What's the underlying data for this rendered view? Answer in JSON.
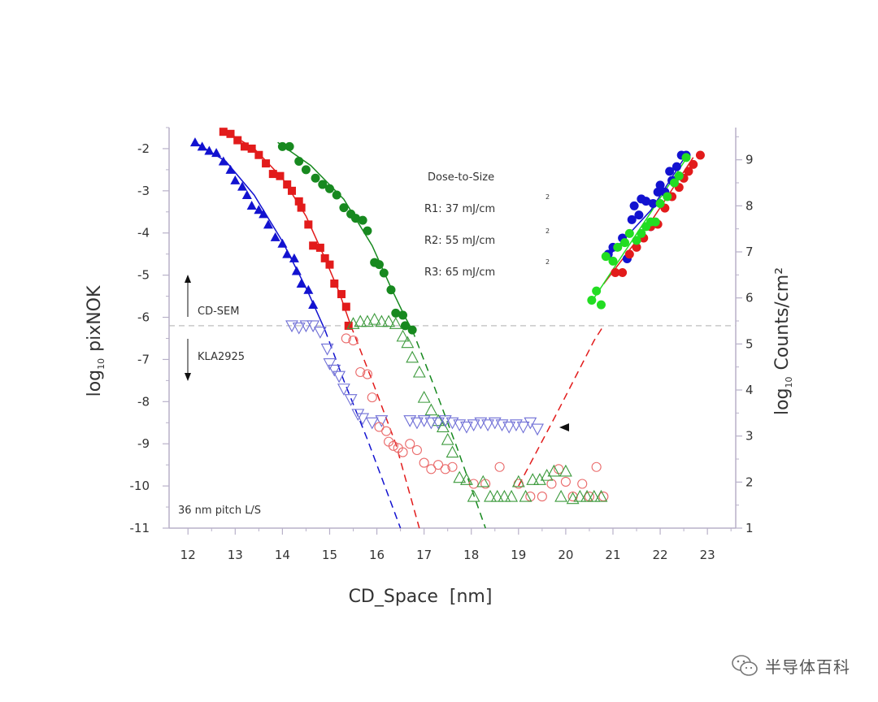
{
  "chart_data": {
    "type": "scatter",
    "xlabel": "CD_Space  [nm]",
    "ylabel_left": {
      "prefix": "log",
      "sub": "10",
      "name": "pixNOK"
    },
    "ylabel_right": {
      "prefix": "log",
      "sub": "10",
      "name": "Counts/cm²"
    },
    "xlim": [
      11.6,
      23.6
    ],
    "ylim_left": [
      -11,
      -1.5
    ],
    "ylim_right": [
      1,
      9.7
    ],
    "x_ticks": [
      12,
      13,
      14,
      15,
      16,
      17,
      18,
      19,
      20,
      21,
      22,
      23
    ],
    "y_ticks_left": [
      -2,
      -3,
      -4,
      -5,
      -6,
      -7,
      -8,
      -9,
      -10,
      -11
    ],
    "y_ticks_right": [
      1,
      2,
      3,
      4,
      5,
      6,
      7,
      8,
      9
    ],
    "threshold_level": -6.2,
    "annotations": {
      "dose_title": "Dose-to-Size",
      "r1": "R1: 37 mJ/cm",
      "r2": "R2: 55 mJ/cm",
      "r3": "R3: 65 mJ/cm",
      "sup": "2",
      "cd_sem": "CD-SEM",
      "kla": "KLA2925",
      "pitch": "36 nm pitch L/S"
    },
    "colors": {
      "R1": "#1212d0",
      "R2": "#e21b1b",
      "R3": "#17891f",
      "R3_right": "#22dd22",
      "kla_R1": "#6f6fd6",
      "kla_R2": "#ea6a6a",
      "kla_R3": "#3c9a3c"
    },
    "series": [
      {
        "id": "R1_cdsem",
        "marker": "triangle-up-filled",
        "color": "#1212d0",
        "points": [
          [
            12.15,
            -1.85
          ],
          [
            12.3,
            -1.95
          ],
          [
            12.45,
            -2.05
          ],
          [
            12.6,
            -2.1
          ],
          [
            12.75,
            -2.3
          ],
          [
            12.9,
            -2.5
          ],
          [
            13.0,
            -2.75
          ],
          [
            13.15,
            -2.9
          ],
          [
            13.25,
            -3.1
          ],
          [
            13.35,
            -3.35
          ],
          [
            13.5,
            -3.45
          ],
          [
            13.6,
            -3.55
          ],
          [
            13.7,
            -3.8
          ],
          [
            13.85,
            -4.1
          ],
          [
            14.0,
            -4.25
          ],
          [
            14.1,
            -4.5
          ],
          [
            14.25,
            -4.6
          ],
          [
            14.3,
            -4.9
          ],
          [
            14.4,
            -5.2
          ],
          [
            14.55,
            -5.35
          ],
          [
            14.65,
            -5.7
          ]
        ]
      },
      {
        "id": "R2_cdsem",
        "marker": "square-filled",
        "color": "#e21b1b",
        "points": [
          [
            12.75,
            -1.6
          ],
          [
            12.9,
            -1.65
          ],
          [
            13.05,
            -1.8
          ],
          [
            13.2,
            -1.95
          ],
          [
            13.35,
            -2.0
          ],
          [
            13.5,
            -2.15
          ],
          [
            13.65,
            -2.35
          ],
          [
            13.8,
            -2.6
          ],
          [
            13.95,
            -2.65
          ],
          [
            14.1,
            -2.85
          ],
          [
            14.2,
            -3.0
          ],
          [
            14.35,
            -3.25
          ],
          [
            14.4,
            -3.4
          ],
          [
            14.55,
            -3.8
          ],
          [
            14.65,
            -4.3
          ],
          [
            14.8,
            -4.35
          ],
          [
            14.9,
            -4.6
          ],
          [
            15.0,
            -4.75
          ],
          [
            15.1,
            -5.2
          ],
          [
            15.25,
            -5.45
          ],
          [
            15.35,
            -5.75
          ],
          [
            15.4,
            -6.2
          ]
        ]
      },
      {
        "id": "R3_cdsem",
        "marker": "circle-filled",
        "color": "#17891f",
        "points": [
          [
            14.0,
            -1.95
          ],
          [
            14.15,
            -1.95
          ],
          [
            14.35,
            -2.3
          ],
          [
            14.5,
            -2.5
          ],
          [
            14.7,
            -2.7
          ],
          [
            14.85,
            -2.85
          ],
          [
            15.0,
            -2.95
          ],
          [
            15.15,
            -3.1
          ],
          [
            15.3,
            -3.4
          ],
          [
            15.45,
            -3.55
          ],
          [
            15.55,
            -3.65
          ],
          [
            15.7,
            -3.7
          ],
          [
            15.8,
            -3.95
          ],
          [
            15.95,
            -4.7
          ],
          [
            16.05,
            -4.75
          ],
          [
            16.15,
            -4.95
          ],
          [
            16.3,
            -5.35
          ],
          [
            16.4,
            -5.9
          ],
          [
            16.55,
            -5.95
          ],
          [
            16.6,
            -6.2
          ],
          [
            16.75,
            -6.3
          ]
        ]
      },
      {
        "id": "R1_kla",
        "marker": "triangle-down-open",
        "color": "#6f6fd6",
        "points": [
          [
            14.2,
            -6.2
          ],
          [
            14.35,
            -6.25
          ],
          [
            14.5,
            -6.2
          ],
          [
            14.65,
            -6.2
          ],
          [
            14.8,
            -6.35
          ],
          [
            14.95,
            -6.75
          ],
          [
            15.0,
            -7.1
          ],
          [
            15.1,
            -7.25
          ],
          [
            15.2,
            -7.4
          ],
          [
            15.3,
            -7.7
          ],
          [
            15.45,
            -7.95
          ],
          [
            15.6,
            -8.3
          ],
          [
            15.7,
            -8.4
          ],
          [
            15.9,
            -8.5
          ],
          [
            16.1,
            -8.45
          ]
        ]
      },
      {
        "id": "R2_kla",
        "marker": "circle-open",
        "color": "#ea6a6a",
        "points": [
          [
            15.35,
            -6.5
          ],
          [
            15.5,
            -6.55
          ],
          [
            15.65,
            -7.3
          ],
          [
            15.8,
            -7.35
          ],
          [
            15.9,
            -7.9
          ],
          [
            16.05,
            -8.6
          ],
          [
            16.2,
            -8.7
          ],
          [
            16.25,
            -8.95
          ],
          [
            16.35,
            -9.05
          ],
          [
            16.45,
            -9.1
          ],
          [
            16.55,
            -9.2
          ],
          [
            16.7,
            -9.0
          ],
          [
            16.85,
            -9.15
          ],
          [
            17.0,
            -9.45
          ],
          [
            17.15,
            -9.6
          ],
          [
            17.3,
            -9.5
          ],
          [
            17.45,
            -9.6
          ],
          [
            17.6,
            -9.55
          ],
          [
            18.05,
            -9.95
          ],
          [
            18.3,
            -9.95
          ],
          [
            18.6,
            -9.55
          ],
          [
            19.0,
            -9.95
          ],
          [
            19.25,
            -10.25
          ],
          [
            19.5,
            -10.25
          ],
          [
            19.7,
            -9.95
          ],
          [
            19.85,
            -9.6
          ],
          [
            20.0,
            -9.9
          ],
          [
            20.15,
            -10.25
          ],
          [
            20.35,
            -9.95
          ],
          [
            20.5,
            -10.25
          ],
          [
            20.65,
            -9.55
          ],
          [
            20.8,
            -10.25
          ]
        ]
      },
      {
        "id": "R3_kla",
        "marker": "triangle-up-open",
        "color": "#3c9a3c",
        "points": [
          [
            15.5,
            -6.15
          ],
          [
            15.65,
            -6.1
          ],
          [
            15.8,
            -6.1
          ],
          [
            15.95,
            -6.05
          ],
          [
            16.1,
            -6.1
          ],
          [
            16.25,
            -6.1
          ],
          [
            16.4,
            -6.15
          ],
          [
            16.55,
            -6.45
          ],
          [
            16.65,
            -6.6
          ],
          [
            16.75,
            -6.95
          ],
          [
            16.9,
            -7.3
          ],
          [
            17.0,
            -7.9
          ],
          [
            17.15,
            -8.2
          ],
          [
            17.3,
            -8.45
          ],
          [
            17.4,
            -8.6
          ],
          [
            17.5,
            -8.9
          ],
          [
            17.6,
            -9.2
          ],
          [
            17.75,
            -9.8
          ],
          [
            17.9,
            -9.85
          ],
          [
            18.05,
            -10.25
          ],
          [
            18.25,
            -9.9
          ],
          [
            18.4,
            -10.25
          ],
          [
            18.55,
            -10.25
          ],
          [
            18.7,
            -10.25
          ],
          [
            18.85,
            -10.25
          ],
          [
            19.0,
            -9.9
          ],
          [
            19.15,
            -10.25
          ],
          [
            19.3,
            -9.85
          ],
          [
            19.45,
            -9.85
          ],
          [
            19.6,
            -9.75
          ],
          [
            19.75,
            -9.65
          ],
          [
            19.9,
            -10.25
          ],
          [
            20.0,
            -9.65
          ],
          [
            20.15,
            -10.3
          ],
          [
            20.3,
            -10.25
          ],
          [
            20.45,
            -10.25
          ],
          [
            20.6,
            -10.25
          ],
          [
            20.75,
            -10.25
          ]
        ]
      },
      {
        "id": "R1_kla_flat",
        "marker": "triangle-down-open",
        "color": "#6f6fd6",
        "points": [
          [
            16.7,
            -8.45
          ],
          [
            16.85,
            -8.5
          ],
          [
            17.0,
            -8.45
          ],
          [
            17.15,
            -8.5
          ],
          [
            17.3,
            -8.5
          ],
          [
            17.45,
            -8.45
          ],
          [
            17.6,
            -8.5
          ],
          [
            17.75,
            -8.55
          ],
          [
            17.9,
            -8.6
          ],
          [
            18.05,
            -8.55
          ],
          [
            18.2,
            -8.5
          ],
          [
            18.35,
            -8.55
          ],
          [
            18.5,
            -8.5
          ],
          [
            18.65,
            -8.55
          ],
          [
            18.8,
            -8.6
          ],
          [
            18.95,
            -8.55
          ],
          [
            19.1,
            -8.6
          ],
          [
            19.25,
            -8.5
          ],
          [
            19.4,
            -8.65
          ]
        ]
      },
      {
        "id": "R1_counts",
        "marker": "circle-filled",
        "color": "#1212d0",
        "points": [
          [
            20.9,
            6.95
          ],
          [
            21.0,
            7.1
          ],
          [
            21.2,
            7.3
          ],
          [
            21.3,
            6.85
          ],
          [
            21.4,
            7.7
          ],
          [
            21.45,
            8.0
          ],
          [
            21.55,
            7.8
          ],
          [
            21.6,
            8.15
          ],
          [
            21.7,
            8.1
          ],
          [
            21.8,
            7.55
          ],
          [
            21.85,
            8.05
          ],
          [
            21.95,
            8.3
          ],
          [
            22.0,
            8.45
          ],
          [
            22.1,
            8.3
          ],
          [
            22.2,
            8.75
          ],
          [
            22.25,
            8.55
          ],
          [
            22.35,
            8.85
          ],
          [
            22.45,
            9.1
          ],
          [
            22.55,
            9.1
          ]
        ]
      },
      {
        "id": "R2_counts",
        "marker": "circle-filled",
        "color": "#e21b1b",
        "points": [
          [
            21.05,
            6.55
          ],
          [
            21.2,
            6.55
          ],
          [
            21.35,
            6.95
          ],
          [
            21.5,
            7.1
          ],
          [
            21.65,
            7.3
          ],
          [
            21.8,
            7.55
          ],
          [
            21.95,
            7.6
          ],
          [
            22.1,
            7.95
          ],
          [
            22.25,
            8.2
          ],
          [
            22.4,
            8.4
          ],
          [
            22.5,
            8.6
          ],
          [
            22.6,
            8.75
          ],
          [
            22.7,
            8.9
          ],
          [
            22.85,
            9.1
          ]
        ]
      },
      {
        "id": "R3_counts",
        "marker": "circle-filled",
        "color": "#22dd22",
        "points": [
          [
            20.55,
            5.95
          ],
          [
            20.65,
            6.15
          ],
          [
            20.75,
            5.85
          ],
          [
            20.85,
            6.9
          ],
          [
            21.0,
            6.8
          ],
          [
            21.1,
            7.1
          ],
          [
            21.25,
            7.2
          ],
          [
            21.35,
            7.4
          ],
          [
            21.5,
            7.25
          ],
          [
            21.6,
            7.4
          ],
          [
            21.7,
            7.55
          ],
          [
            21.8,
            7.65
          ],
          [
            21.9,
            7.65
          ],
          [
            22.0,
            8.05
          ],
          [
            22.15,
            8.2
          ],
          [
            22.3,
            8.5
          ],
          [
            22.4,
            8.65
          ],
          [
            22.55,
            9.05
          ]
        ]
      }
    ]
  },
  "watermark": {
    "text": "半导体百科"
  }
}
